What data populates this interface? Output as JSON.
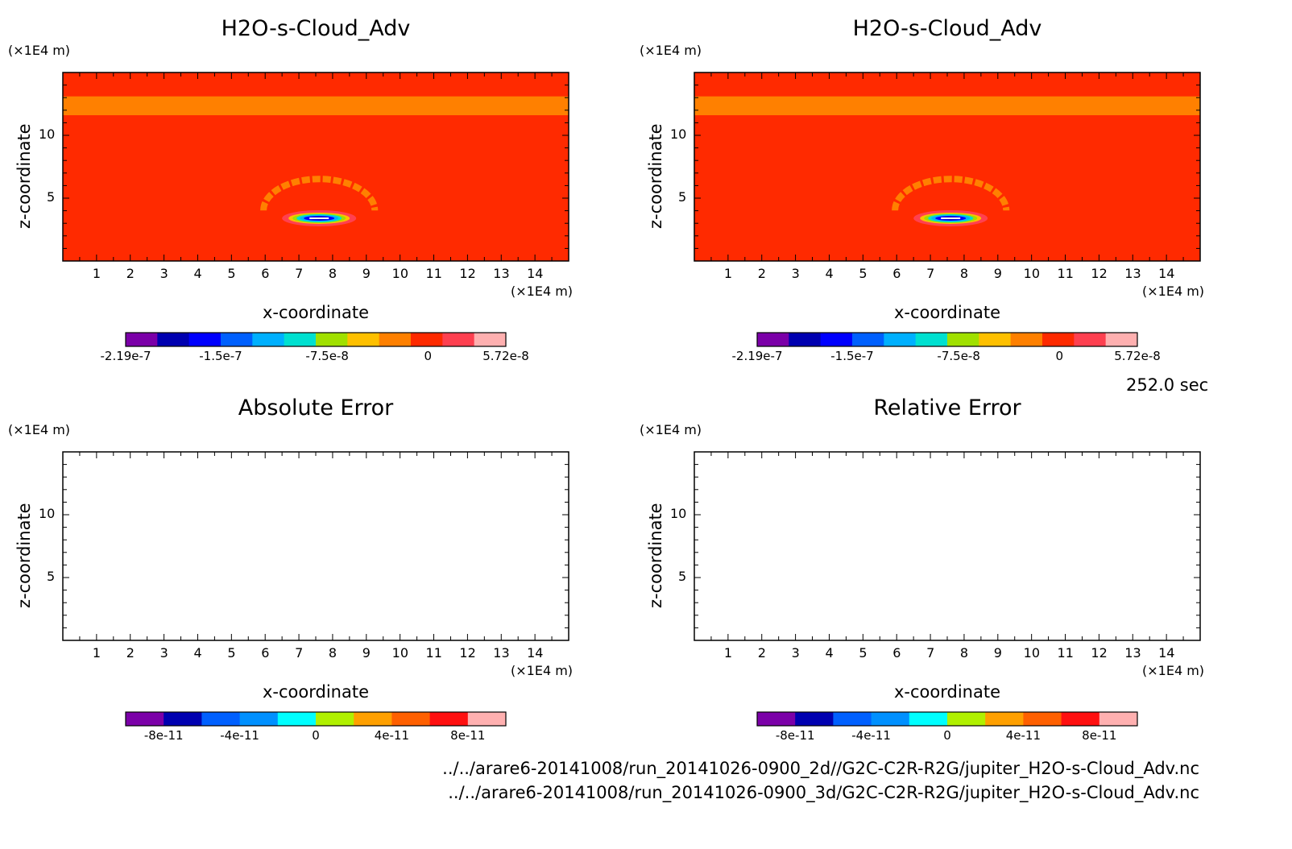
{
  "figure": {
    "time_label": "252.0 sec",
    "file_paths": [
      "../../arare6-20141008/run_20141026-0900_2d//G2C-C2R-R2G/jupiter_H2O-s-Cloud_Adv.nc",
      "../../arare6-20141008/run_20141026-0900_3d/G2C-C2R-R2G/jupiter_H2O-s-Cloud_Adv.nc"
    ]
  },
  "colors": {
    "background_field": "#ff2a00",
    "band_field": "#ff8000",
    "ring_field": "#ff8000"
  },
  "chart_data": [
    {
      "type": "heatmap",
      "title": "H2O-s-Cloud_Adv",
      "xlabel": "x-coordinate",
      "ylabel": "z-coordinate",
      "x_unit": "(×1E4 m)",
      "y_unit": "(×1E4 m)",
      "xlim": [
        0,
        15
      ],
      "ylim": [
        0,
        15
      ],
      "x_ticks": [
        "1",
        "2",
        "3",
        "4",
        "5",
        "6",
        "7",
        "8",
        "9",
        "10",
        "11",
        "12",
        "13",
        "14"
      ],
      "y_ticks": [
        "5",
        "10"
      ],
      "features": {
        "band_z": [
          11.6,
          13.1
        ],
        "ring_center": [
          7.6,
          5.4
        ],
        "ring_radius": [
          1.65,
          2.5
        ],
        "core_center": [
          7.6,
          3.4
        ]
      },
      "colorbar": {
        "labels": [
          "-2.19e-7",
          "-1.5e-7",
          "-7.5e-8",
          "0",
          "5.72e-8"
        ],
        "colors": [
          "#7b00a8",
          "#0000b0",
          "#0000ff",
          "#0060ff",
          "#00b0ff",
          "#00e0d0",
          "#a0e000",
          "#ffc000",
          "#ff8000",
          "#ff2a00",
          "#ff4050",
          "#ffb0b0"
        ]
      }
    },
    {
      "type": "heatmap",
      "title": "H2O-s-Cloud_Adv",
      "xlabel": "x-coordinate",
      "ylabel": "z-coordinate",
      "x_unit": "(×1E4 m)",
      "y_unit": "(×1E4 m)",
      "xlim": [
        0,
        15
      ],
      "ylim": [
        0,
        15
      ],
      "x_ticks": [
        "1",
        "2",
        "3",
        "4",
        "5",
        "6",
        "7",
        "8",
        "9",
        "10",
        "11",
        "12",
        "13",
        "14"
      ],
      "y_ticks": [
        "5",
        "10"
      ],
      "features": {
        "band_z": [
          11.6,
          13.1
        ],
        "ring_center": [
          7.6,
          5.4
        ],
        "ring_radius": [
          1.65,
          2.5
        ],
        "core_center": [
          7.6,
          3.4
        ]
      },
      "colorbar": {
        "labels": [
          "-2.19e-7",
          "-1.5e-7",
          "-7.5e-8",
          "0",
          "5.72e-8"
        ],
        "colors": [
          "#7b00a8",
          "#0000b0",
          "#0000ff",
          "#0060ff",
          "#00b0ff",
          "#00e0d0",
          "#a0e000",
          "#ffc000",
          "#ff8000",
          "#ff2a00",
          "#ff4050",
          "#ffb0b0"
        ]
      }
    },
    {
      "type": "heatmap",
      "title": "Absolute Error",
      "xlabel": "x-coordinate",
      "ylabel": "z-coordinate",
      "x_unit": "(×1E4 m)",
      "y_unit": "(×1E4 m)",
      "xlim": [
        0,
        15
      ],
      "ylim": [
        0,
        15
      ],
      "x_ticks": [
        "1",
        "2",
        "3",
        "4",
        "5",
        "6",
        "7",
        "8",
        "9",
        "10",
        "11",
        "12",
        "13",
        "14"
      ],
      "y_ticks": [
        "5",
        "10"
      ],
      "features": null,
      "colorbar": {
        "labels": [
          "-8e-11",
          "-4e-11",
          "0",
          "4e-11",
          "8e-11"
        ],
        "colors": [
          "#7b00a8",
          "#0000b0",
          "#0060ff",
          "#0090ff",
          "#00ffff",
          "#b0f000",
          "#ffa000",
          "#ff6000",
          "#ff1010",
          "#ffb0b0"
        ]
      }
    },
    {
      "type": "heatmap",
      "title": "Relative Error",
      "xlabel": "x-coordinate",
      "ylabel": "z-coordinate",
      "x_unit": "(×1E4 m)",
      "y_unit": "(×1E4 m)",
      "xlim": [
        0,
        15
      ],
      "ylim": [
        0,
        15
      ],
      "x_ticks": [
        "1",
        "2",
        "3",
        "4",
        "5",
        "6",
        "7",
        "8",
        "9",
        "10",
        "11",
        "12",
        "13",
        "14"
      ],
      "y_ticks": [
        "5",
        "10"
      ],
      "features": null,
      "colorbar": {
        "labels": [
          "-8e-11",
          "-4e-11",
          "0",
          "4e-11",
          "8e-11"
        ],
        "colors": [
          "#7b00a8",
          "#0000b0",
          "#0060ff",
          "#0090ff",
          "#00ffff",
          "#b0f000",
          "#ffa000",
          "#ff6000",
          "#ff1010",
          "#ffb0b0"
        ]
      }
    }
  ]
}
